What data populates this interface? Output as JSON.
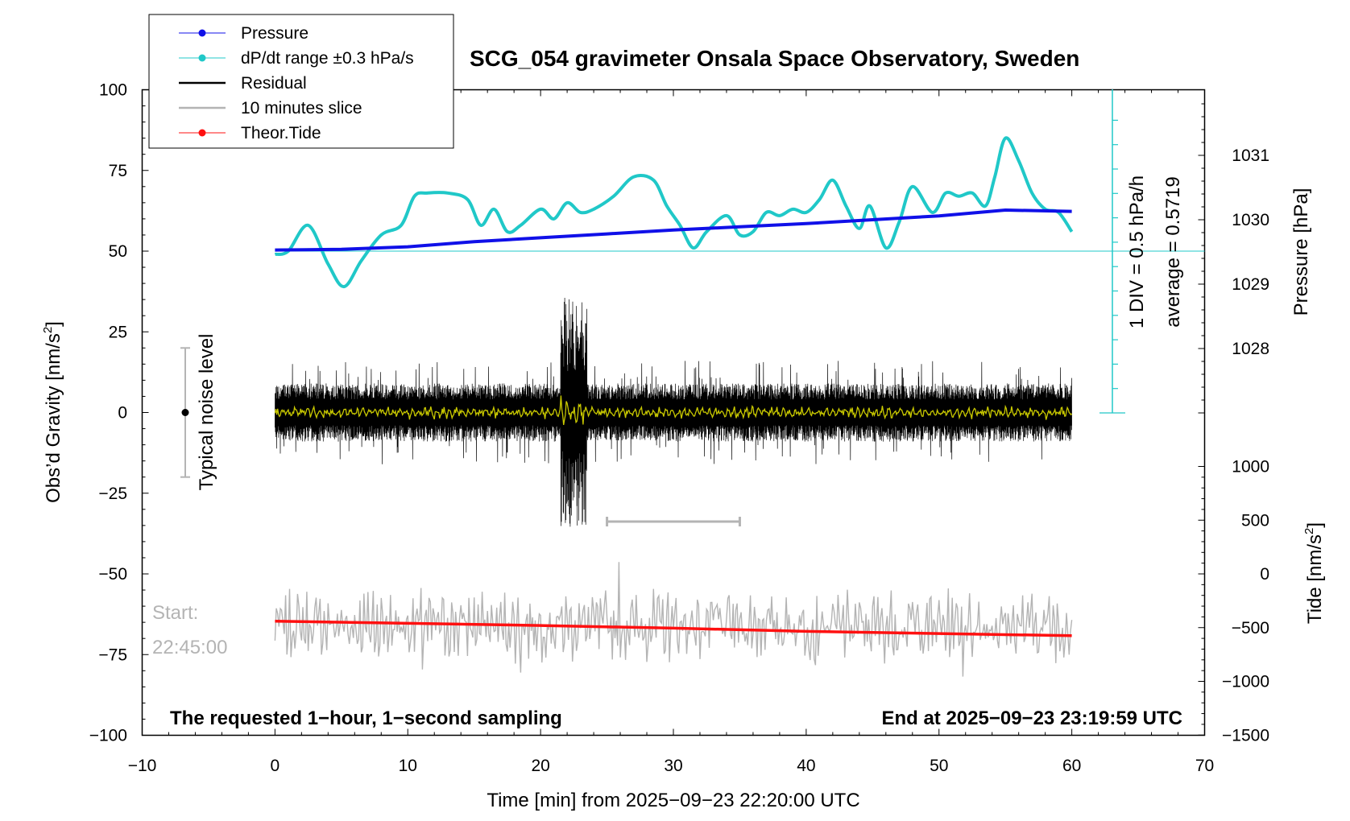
{
  "chart_data": {
    "type": "line",
    "title": "SCG_054 gravimeter Onsala Space Observatory, Sweden",
    "xlabel": "Time [min] from 2025−09−23 22:20:00 UTC",
    "ylabel_left_main": "Obs’d Gravity [nm/s",
    "ylabel_left_sup": "2",
    "ylabel_left_end": "]",
    "ylabel_right_pressure": "Pressure [hPa]",
    "ylabel_right_tide_main": "Tide [nm/s",
    "ylabel_right_tide_sup": "2",
    "ylabel_right_tide_end": "]",
    "xlim": [
      -10,
      70
    ],
    "ylim": [
      -100,
      100
    ],
    "x_ticks": [
      "−10",
      "0",
      "10",
      "20",
      "30",
      "40",
      "50",
      "60",
      "70"
    ],
    "y_ticks_left": [
      "100",
      "75",
      "50",
      "25",
      "0",
      "−25",
      "−50",
      "−75",
      "−100"
    ],
    "pressure_ticks": [
      "1031",
      "1030",
      "1029",
      "1028"
    ],
    "pressure_tick_values": [
      1031,
      1030,
      1029,
      1028
    ],
    "tide_ticks": [
      "1000",
      "500",
      "0",
      "−500",
      "−1000",
      "−1500"
    ],
    "tide_tick_values": [
      1000,
      500,
      0,
      -500,
      -1000,
      -1500
    ],
    "legend": [
      {
        "label": "Pressure",
        "color": "#1010e8",
        "marker": true
      },
      {
        "label": "dP/dt range ±0.3 hPa/s",
        "color": "#20c8c8",
        "marker": true
      },
      {
        "label": "Residual",
        "color": "#000000",
        "marker": false
      },
      {
        "label": "10 minutes slice",
        "color": "#b4b4b4",
        "marker": false
      },
      {
        "label": "Theor.Tide",
        "color": "#ff1010",
        "marker": true
      }
    ],
    "colors": {
      "pressure": "#1010e8",
      "dpdt": "#20c8c8",
      "residual": "#000000",
      "smoothed": "#c8c800",
      "slice": "#b4b4b4",
      "tide": "#ff1010"
    },
    "noise_label": "Typical noise level",
    "noise_range": [
      -20,
      20
    ],
    "div_label": "1 DIV = 0.5 hPa/h",
    "avg_label": "average = 0.5719",
    "start_label": "Start:",
    "start_time": "22:45:00",
    "slice_bar_range": [
      25,
      35
    ],
    "bottom_left_note": "The requested 1−hour, 1−second sampling",
    "bottom_right_note": "End at 2025−09−23 23:19:59 UTC",
    "pressure_series": {
      "name": "Pressure",
      "x": [
        0,
        5,
        10,
        15,
        20,
        25,
        30,
        35,
        40,
        45,
        50,
        55,
        60
      ],
      "hPa": [
        1029.53,
        1029.54,
        1029.58,
        1029.66,
        1029.72,
        1029.78,
        1029.84,
        1029.89,
        1029.94,
        1030.0,
        1030.06,
        1030.15,
        1030.13
      ]
    },
    "dpdt_series": {
      "name": "dP/dt range ±0.3 hPa/s",
      "x": [
        0,
        1,
        2.5,
        4,
        5.2,
        6.5,
        8,
        9.5,
        10.5,
        11.5,
        13,
        14.5,
        15.5,
        16.5,
        17.5,
        18.5,
        20,
        21,
        22,
        23,
        24,
        25.5,
        27,
        28.5,
        29.5,
        30.5,
        31.5,
        32.5,
        34,
        35,
        36,
        37,
        38,
        39,
        40,
        41,
        42,
        43,
        44,
        44.8,
        46,
        47,
        48,
        49.5,
        50.5,
        51.5,
        52.5,
        53.5,
        54.2,
        55,
        56,
        57,
        58,
        59,
        60
      ],
      "y": [
        49,
        50,
        58,
        46,
        39,
        47,
        55,
        58,
        67,
        68,
        68,
        66,
        58,
        63,
        56,
        58,
        63,
        60,
        65,
        62,
        63,
        67,
        73,
        72,
        64,
        58,
        51,
        56,
        61,
        55,
        56,
        62,
        61,
        63,
        62,
        66,
        72,
        64,
        57,
        64,
        51,
        59,
        70,
        62,
        68,
        67,
        68,
        64,
        73,
        85,
        78,
        68,
        63,
        62,
        56
      ]
    },
    "residual_series": {
      "name": "Residual",
      "x_range": [
        0,
        60
      ],
      "y_range": [
        -44,
        37
      ],
      "y_envelope_typical": [
        -12,
        12
      ]
    },
    "slice_series": {
      "name": "10 minutes slice",
      "x_range": [
        0,
        60
      ],
      "y_center": -66,
      "y_range": [
        -86,
        -43
      ]
    },
    "tide_series": {
      "name": "Theor.Tide",
      "x": [
        0,
        10,
        20,
        30,
        40,
        50,
        60
      ],
      "nm_s2": [
        -440,
        -460,
        -480,
        -505,
        -535,
        -555,
        -575
      ]
    }
  }
}
